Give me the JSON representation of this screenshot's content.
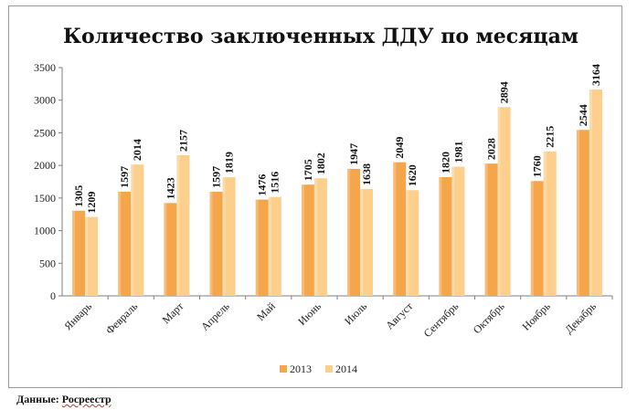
{
  "chart_data": {
    "type": "bar",
    "title": "Количество заключенных ДДУ по месяцам",
    "categories": [
      "Январь",
      "Февраль",
      "Март",
      "Апрель",
      "Май",
      "Июнь",
      "Июль",
      "Август",
      "Сентябрь",
      "Октябрь",
      "Ноябрь",
      "Декабрь"
    ],
    "series": [
      {
        "name": "2013",
        "color": "#f5a54a",
        "values": [
          1305,
          1597,
          1423,
          1597,
          1476,
          1705,
          1947,
          2049,
          1820,
          2028,
          1760,
          2544
        ]
      },
      {
        "name": "2014",
        "color": "#fccf8c",
        "values": [
          1209,
          2014,
          2157,
          1819,
          1516,
          1802,
          1638,
          1620,
          1981,
          2894,
          2215,
          3164
        ]
      }
    ],
    "ylim": [
      0,
      3500
    ],
    "yticks": [
      "0",
      "500",
      "1000",
      "1500",
      "2000",
      "2500",
      "3000",
      "3500"
    ],
    "grid": false,
    "legend": "bottom",
    "data_labels": true
  },
  "source": {
    "label": "Данные:",
    "name": "Росреестр"
  }
}
